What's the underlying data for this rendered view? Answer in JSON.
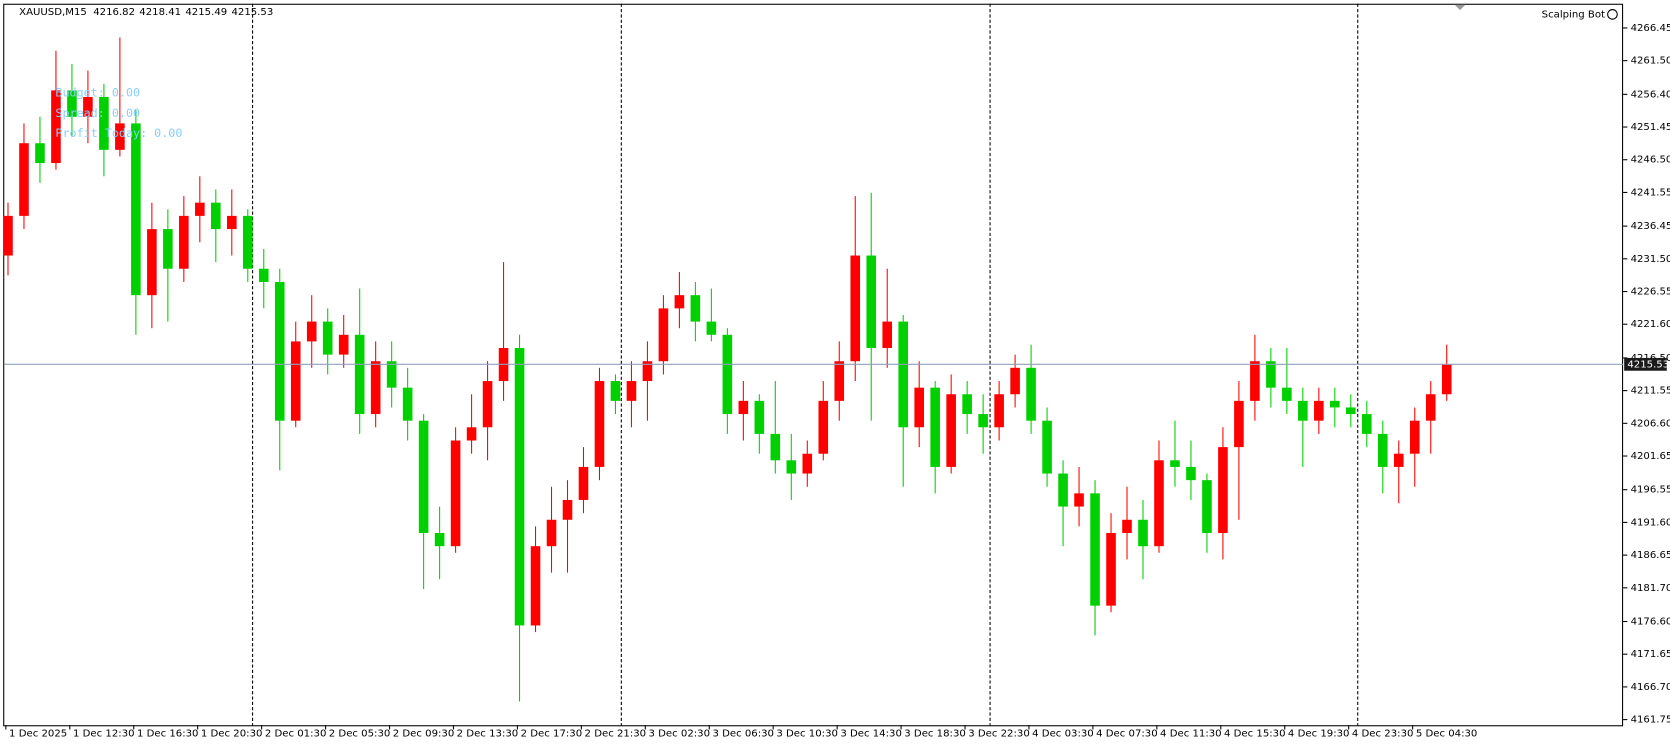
{
  "chart_data": {
    "type": "candlestick",
    "header": {
      "symbol": "XAUUSD,M15",
      "ohlc": [
        4216.82,
        4218.41,
        4215.49,
        4215.53
      ]
    },
    "badge": "Scalping Bot",
    "overlay": [
      "Budget: 0.00",
      "Spread: 0.00",
      "Profit Today: 0.00"
    ],
    "categories": [
      "1 Dec 2025",
      null,
      null,
      null,
      "1 Dec 12:30",
      null,
      null,
      null,
      "1 Dec 16:30",
      null,
      null,
      null,
      "1 Dec 20:30",
      null,
      null,
      null,
      "2 Dec 01:30",
      null,
      null,
      null,
      "2 Dec 05:30",
      null,
      null,
      null,
      "2 Dec 09:30",
      null,
      null,
      null,
      "2 Dec 13:30",
      null,
      null,
      null,
      "2 Dec 17:30",
      null,
      null,
      null,
      "2 Dec 21:30",
      null,
      null,
      null,
      "3 Dec 02:30",
      null,
      null,
      null,
      "3 Dec 06:30",
      null,
      null,
      null,
      "3 Dec 10:30",
      null,
      null,
      null,
      "3 Dec 14:30",
      null,
      null,
      null,
      "3 Dec 18:30",
      null,
      null,
      null,
      "3 Dec 22:30",
      null,
      null,
      null,
      "4 Dec 03:30",
      null,
      null,
      null,
      "4 Dec 07:30",
      null,
      null,
      null,
      "4 Dec 11:30",
      null,
      null,
      null,
      "4 Dec 15:30",
      null,
      null,
      null,
      "4 Dec 19:30",
      null,
      null,
      null,
      "4 Dec 23:30",
      null,
      null,
      null,
      "5 Dec 04:30",
      null,
      null
    ],
    "open": [
      4232,
      4238,
      4249,
      4246,
      4257,
      4253,
      4256,
      4248,
      4252,
      4226,
      4236,
      4230,
      4238,
      4240,
      4236,
      4238,
      4230,
      4228,
      4207,
      4219,
      4222,
      4217,
      4220,
      4208,
      4216,
      4212,
      4207,
      4190,
      4188,
      4204,
      4206,
      4213,
      4218,
      4176,
      4188,
      4192,
      4195,
      4200,
      4213,
      4210,
      4213,
      4216,
      4224,
      4226,
      4222,
      4220,
      4208,
      4210,
      4205,
      4201,
      4199,
      4202,
      4210,
      4216,
      4232,
      4218,
      4222,
      4206,
      4212,
      4200,
      4211,
      4208,
      4206,
      4211,
      4215,
      4207,
      4199,
      4194,
      4196,
      4179,
      4190,
      4192,
      4188,
      4201,
      4200,
      4198,
      4190,
      4203,
      4210,
      4216,
      4212,
      4210,
      4207,
      4210,
      4209,
      4208,
      4205,
      4200,
      4202,
      4207,
      4211
    ],
    "high": [
      4240,
      4252,
      4253,
      4263,
      4261,
      4260,
      4258,
      4265,
      4254,
      4240,
      4239,
      4241,
      4244,
      4242,
      4242,
      4239,
      4233,
      4230,
      4222,
      4226,
      4224,
      4223,
      4227,
      4219,
      4219,
      4215,
      4208,
      4194,
      4206,
      4211,
      4216,
      4231,
      4220,
      4191,
      4197,
      4198,
      4203,
      4215,
      4214,
      4216,
      4219,
      4226,
      4229.5,
      4228,
      4227,
      4221,
      4213,
      4211,
      4213,
      4205,
      4204,
      4213,
      4219,
      4241,
      4241.5,
      4230,
      4223,
      4216,
      4213,
      4214,
      4213,
      4211,
      4213,
      4217,
      4218.5,
      4209,
      4201,
      4200,
      4198,
      4193,
      4197,
      4195,
      4204,
      4207,
      4204,
      4199,
      4206,
      4213,
      4220,
      4218,
      4218,
      4212,
      4212,
      4212,
      4211,
      4210,
      4207,
      4204,
      4209,
      4213,
      4218.5
    ],
    "low": [
      4229,
      4236,
      4243,
      4245,
      4250,
      4249,
      4244,
      4247,
      4220,
      4221,
      4222,
      4228,
      4234,
      4231,
      4232,
      4228,
      4224,
      4199.5,
      4206,
      4215,
      4214,
      4215,
      4205,
      4206,
      4209,
      4204,
      4181.5,
      4183,
      4187,
      4202,
      4201,
      4210,
      4164.5,
      4175,
      4184,
      4184,
      4193,
      4198,
      4208,
      4206,
      4207,
      4214,
      4221,
      4219,
      4219,
      4205,
      4204,
      4202,
      4199,
      4195,
      4197,
      4201,
      4207,
      4213,
      4207,
      4215,
      4197,
      4203,
      4196,
      4199,
      4205,
      4202,
      4204,
      4209,
      4205,
      4197,
      4188,
      4191,
      4174.5,
      4178,
      4186,
      4183,
      4187,
      4197,
      4195,
      4187,
      4186,
      4192,
      4207,
      4209,
      4208,
      4200,
      4205,
      4206,
      4206,
      4203,
      4196,
      4194.5,
      4197,
      4202,
      4210
    ],
    "close": [
      4238,
      4249,
      4246,
      4257,
      4253,
      4256,
      4248,
      4252,
      4226,
      4236,
      4230,
      4238,
      4240,
      4236,
      4238,
      4230,
      4228,
      4207,
      4219,
      4222,
      4217,
      4220,
      4208,
      4216,
      4212,
      4207,
      4190,
      4188,
      4204,
      4206,
      4213,
      4218,
      4176,
      4188,
      4192,
      4195,
      4200,
      4213,
      4210,
      4213,
      4216,
      4224,
      4226,
      4222,
      4220,
      4208,
      4210,
      4205,
      4201,
      4199,
      4202,
      4210,
      4216,
      4232,
      4218,
      4222,
      4206,
      4212,
      4200,
      4211,
      4208,
      4206,
      4211,
      4215,
      4207,
      4199,
      4194,
      4196,
      4179,
      4190,
      4192,
      4188,
      4201,
      4200,
      4198,
      4190,
      4203,
      4210,
      4216,
      4212,
      4210,
      4207,
      4210,
      4209,
      4208,
      4205,
      4200,
      4202,
      4207,
      4211,
      4215.53
    ],
    "colors": {
      "up": "#ff0000",
      "down": "#00d000",
      "price_line": "#8fa0bd",
      "overlay": "#87cefa"
    },
    "current_price": 4215.53,
    "ylim": [
      4160.9,
      4270.6
    ],
    "yticks": [
      4266.45,
      {
        "value": 4261.5,
        "label": "4261.50"
      },
      {
        "value": 4256.4,
        "label": "4256.40"
      },
      4251.45,
      {
        "value": 4246.5,
        "label": "4246.50"
      },
      4241.55,
      4236.45,
      {
        "value": 4231.5,
        "label": "4231.50"
      },
      4226.55,
      {
        "value": 4221.6,
        "label": "4221.60"
      },
      {
        "value": 4216.5,
        "label": "4216.50"
      },
      4211.55,
      {
        "value": 4206.6,
        "label": "4206.60"
      },
      4201.65,
      4196.55,
      {
        "value": 4191.6,
        "label": "4191.60"
      },
      4186.65,
      {
        "value": 4181.7,
        "label": "4181.70"
      },
      {
        "value": 4176.6,
        "label": "4176.60"
      },
      4171.65,
      {
        "value": 4166.7,
        "label": "4166.70"
      },
      4161.75
    ]
  }
}
